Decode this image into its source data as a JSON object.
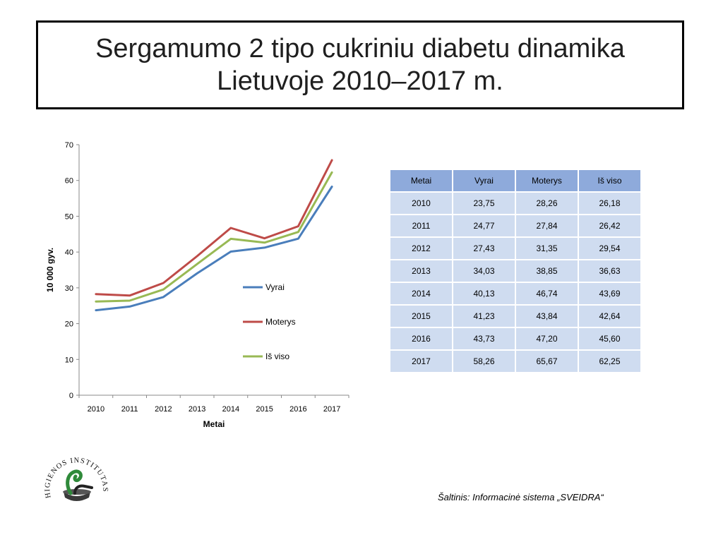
{
  "slide": {
    "title_line1": "Sergamumo 2 tipo cukriniu diabetu dinamika",
    "title_line2": "Lietuvoje 2010–2017 m.",
    "source": "Šaltinis: Informacinė sistema „SVEIDRA“",
    "logo_text": "HIGIENOS INSTITUTAS"
  },
  "table": {
    "headers": [
      "Metai",
      "Vyrai",
      "Moterys",
      "Iš viso"
    ],
    "rows": [
      [
        "2010",
        "23,75",
        "28,26",
        "26,18"
      ],
      [
        "2011",
        "24,77",
        "27,84",
        "26,42"
      ],
      [
        "2012",
        "27,43",
        "31,35",
        "29,54"
      ],
      [
        "2013",
        "34,03",
        "38,85",
        "36,63"
      ],
      [
        "2014",
        "40,13",
        "46,74",
        "43,69"
      ],
      [
        "2015",
        "41,23",
        "43,84",
        "42,64"
      ],
      [
        "2016",
        "43,73",
        "47,20",
        "45,60"
      ],
      [
        "2017",
        "58,26",
        "65,67",
        "62,25"
      ]
    ]
  },
  "chart_data": {
    "type": "line",
    "title": "",
    "xlabel": "Metai",
    "ylabel": "10 000 gyv.",
    "categories": [
      "2010",
      "2011",
      "2012",
      "2013",
      "2014",
      "2015",
      "2016",
      "2017"
    ],
    "ylim": [
      0,
      70
    ],
    "yticks": [
      0,
      10,
      20,
      30,
      40,
      50,
      60,
      70
    ],
    "grid": false,
    "legend_position": "right",
    "series": [
      {
        "name": "Vyrai",
        "color": "#4a7ebb",
        "values": [
          23.75,
          24.77,
          27.43,
          34.03,
          40.13,
          41.23,
          43.73,
          58.26
        ]
      },
      {
        "name": "Moterys",
        "color": "#be4b48",
        "values": [
          28.26,
          27.84,
          31.35,
          38.85,
          46.74,
          43.84,
          47.2,
          65.67
        ]
      },
      {
        "name": "Iš viso",
        "color": "#98b954",
        "values": [
          26.18,
          26.42,
          29.54,
          36.63,
          43.69,
          42.64,
          45.6,
          62.25
        ]
      }
    ]
  }
}
